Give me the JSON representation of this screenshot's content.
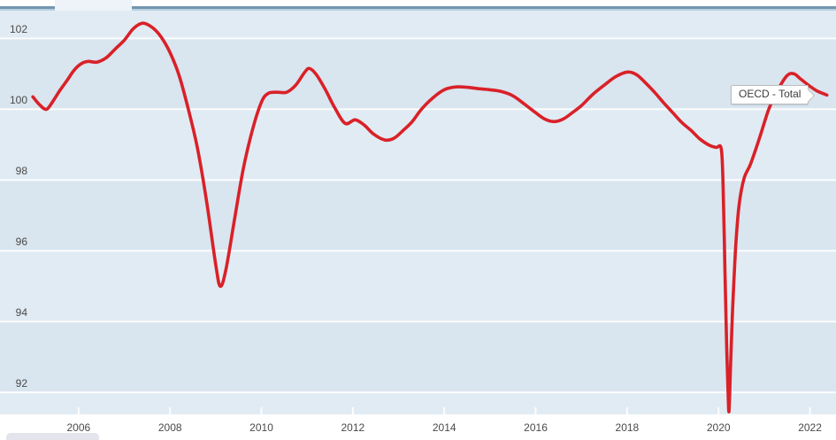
{
  "chart": {
    "series_label": "OECD - Total",
    "colors": {
      "series": "#d92128",
      "band_light": "#e1ebf3",
      "band_dark": "#d9e5ef",
      "gridline": "#fcfdfe",
      "tick": "#fcfdfe",
      "axis_text": "#4a4a4a"
    }
  },
  "chart_data": {
    "type": "line",
    "title": "",
    "xlabel": "",
    "ylabel": "",
    "legend_position": "end-of-line-label",
    "grid": "horizontal-white-on-blue-bands",
    "x_ticks": [
      2006,
      2008,
      2010,
      2012,
      2014,
      2016,
      2018,
      2020,
      2022
    ],
    "y_ticks": [
      102,
      100,
      98,
      96,
      94,
      92
    ],
    "xlim": [
      2004.28,
      2022.57
    ],
    "ylim": [
      91.38,
      102.81
    ],
    "series": [
      {
        "name": "OECD - Total",
        "color": "#d92128",
        "points": [
          [
            2005.0,
            100.35
          ],
          [
            2005.15,
            100.12
          ],
          [
            2005.3,
            100.0
          ],
          [
            2005.45,
            100.25
          ],
          [
            2005.6,
            100.55
          ],
          [
            2005.75,
            100.82
          ],
          [
            2005.9,
            101.1
          ],
          [
            2006.05,
            101.28
          ],
          [
            2006.2,
            101.35
          ],
          [
            2006.4,
            101.33
          ],
          [
            2006.6,
            101.45
          ],
          [
            2006.8,
            101.7
          ],
          [
            2007.0,
            101.95
          ],
          [
            2007.2,
            102.28
          ],
          [
            2007.4,
            102.43
          ],
          [
            2007.6,
            102.32
          ],
          [
            2007.8,
            102.05
          ],
          [
            2008.0,
            101.6
          ],
          [
            2008.2,
            100.95
          ],
          [
            2008.4,
            100.0
          ],
          [
            2008.6,
            98.9
          ],
          [
            2008.8,
            97.4
          ],
          [
            2009.0,
            95.6
          ],
          [
            2009.1,
            95.0
          ],
          [
            2009.22,
            95.45
          ],
          [
            2009.4,
            96.8
          ],
          [
            2009.6,
            98.3
          ],
          [
            2009.8,
            99.4
          ],
          [
            2010.0,
            100.2
          ],
          [
            2010.15,
            100.45
          ],
          [
            2010.35,
            100.48
          ],
          [
            2010.55,
            100.48
          ],
          [
            2010.75,
            100.68
          ],
          [
            2010.95,
            101.05
          ],
          [
            2011.05,
            101.15
          ],
          [
            2011.2,
            100.98
          ],
          [
            2011.4,
            100.55
          ],
          [
            2011.6,
            100.05
          ],
          [
            2011.83,
            99.6
          ],
          [
            2012.05,
            99.7
          ],
          [
            2012.25,
            99.55
          ],
          [
            2012.45,
            99.3
          ],
          [
            2012.7,
            99.13
          ],
          [
            2012.9,
            99.18
          ],
          [
            2013.1,
            99.4
          ],
          [
            2013.3,
            99.65
          ],
          [
            2013.5,
            100.0
          ],
          [
            2013.75,
            100.32
          ],
          [
            2014.0,
            100.55
          ],
          [
            2014.25,
            100.63
          ],
          [
            2014.5,
            100.62
          ],
          [
            2014.75,
            100.58
          ],
          [
            2015.0,
            100.55
          ],
          [
            2015.25,
            100.5
          ],
          [
            2015.5,
            100.38
          ],
          [
            2015.75,
            100.15
          ],
          [
            2016.0,
            99.9
          ],
          [
            2016.2,
            99.72
          ],
          [
            2016.4,
            99.65
          ],
          [
            2016.6,
            99.72
          ],
          [
            2016.8,
            99.9
          ],
          [
            2017.0,
            100.1
          ],
          [
            2017.25,
            100.42
          ],
          [
            2017.5,
            100.68
          ],
          [
            2017.75,
            100.92
          ],
          [
            2018.0,
            101.05
          ],
          [
            2018.2,
            100.98
          ],
          [
            2018.4,
            100.75
          ],
          [
            2018.6,
            100.48
          ],
          [
            2018.8,
            100.18
          ],
          [
            2019.0,
            99.9
          ],
          [
            2019.2,
            99.62
          ],
          [
            2019.4,
            99.4
          ],
          [
            2019.6,
            99.15
          ],
          [
            2019.8,
            98.98
          ],
          [
            2019.95,
            98.92
          ],
          [
            2020.06,
            98.88
          ],
          [
            2020.1,
            97.8
          ],
          [
            2020.14,
            95.5
          ],
          [
            2020.18,
            93.2
          ],
          [
            2020.21,
            91.9
          ],
          [
            2020.23,
            91.48
          ],
          [
            2020.26,
            92.6
          ],
          [
            2020.31,
            94.4
          ],
          [
            2020.38,
            96.2
          ],
          [
            2020.45,
            97.3
          ],
          [
            2020.56,
            98.05
          ],
          [
            2020.7,
            98.45
          ],
          [
            2020.9,
            99.2
          ],
          [
            2021.1,
            100.0
          ],
          [
            2021.3,
            100.55
          ],
          [
            2021.5,
            100.95
          ],
          [
            2021.65,
            101.0
          ],
          [
            2021.8,
            100.85
          ],
          [
            2022.0,
            100.65
          ],
          [
            2022.15,
            100.52
          ],
          [
            2022.37,
            100.4
          ]
        ]
      }
    ]
  }
}
